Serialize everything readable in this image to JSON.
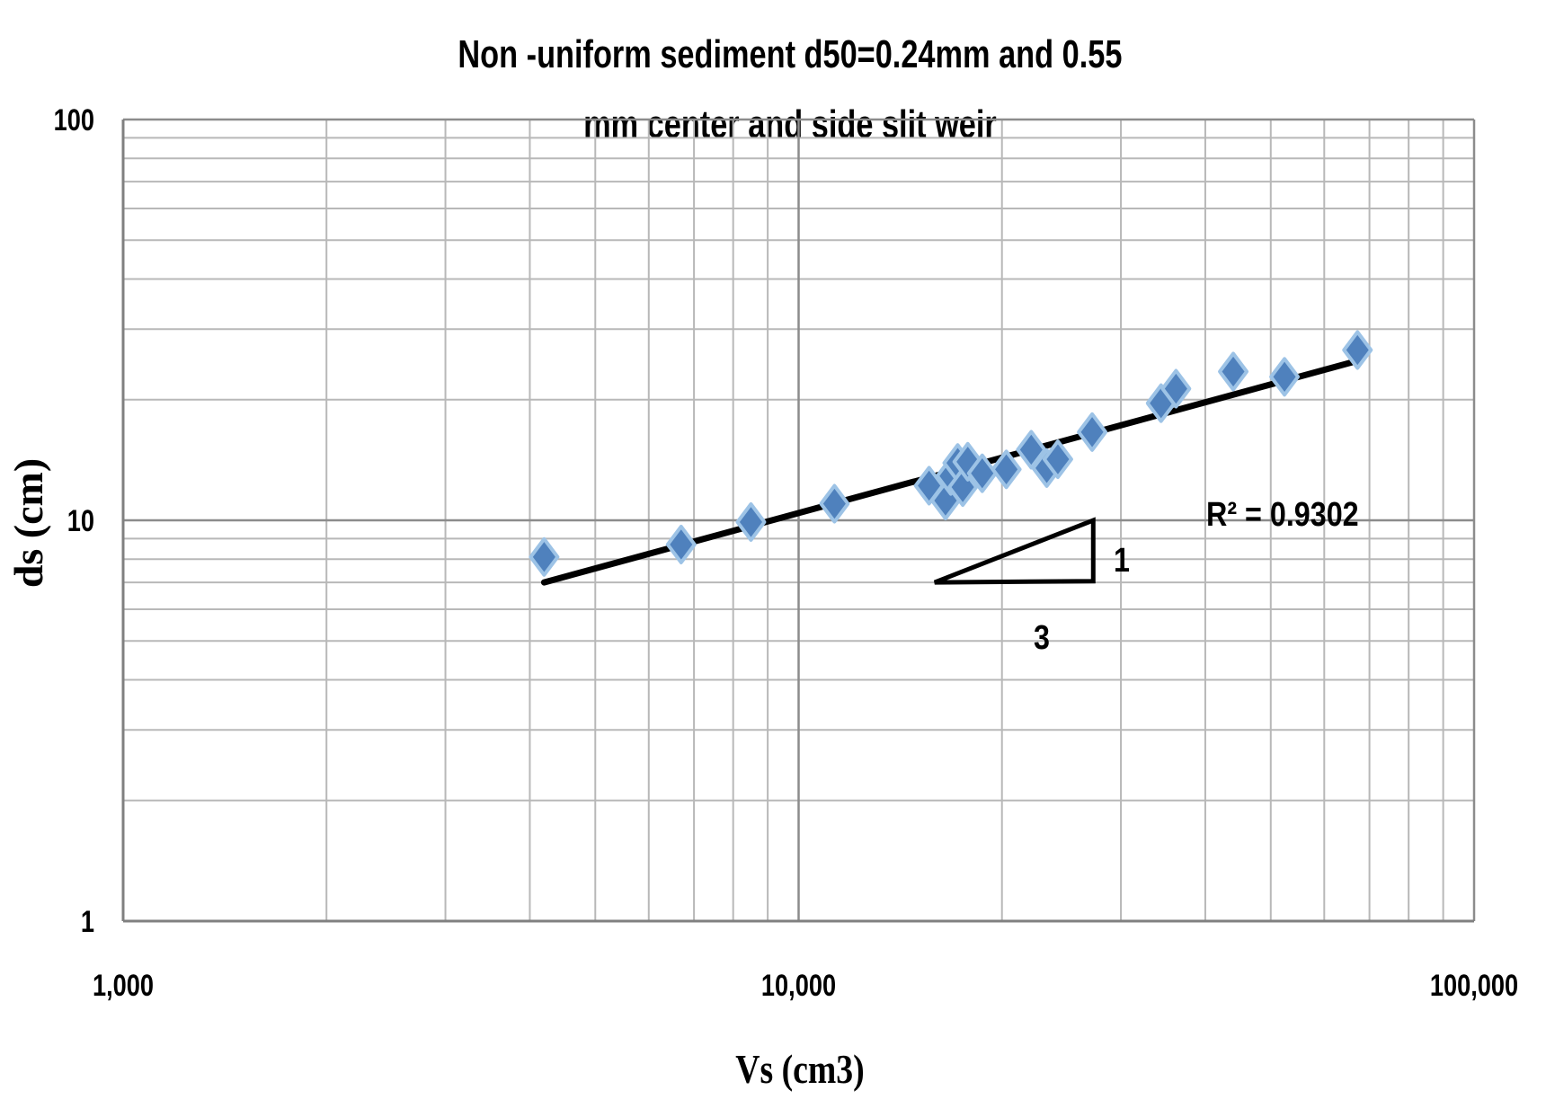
{
  "chart_data": {
    "type": "scatter",
    "title": "Non -uniform sediment  d50=0.24mm and 0.55 mm center and side slit weir",
    "title_lines": [
      "Non -uniform sediment  d50=0.24mm and 0.55",
      "mm center and side slit weir"
    ],
    "xlabel": "Vs (cm3)",
    "ylabel": "ds (cm)",
    "x_scale": "log",
    "y_scale": "log",
    "xlim": [
      1000,
      100000
    ],
    "ylim": [
      1,
      100
    ],
    "x_tick_labels": [
      "1,000",
      "10,000",
      "100,000"
    ],
    "x_ticks": [
      1000,
      10000,
      100000
    ],
    "y_tick_labels": [
      "1",
      "10",
      "100"
    ],
    "y_ticks": [
      1,
      10,
      100
    ],
    "grid": true,
    "legend": "none",
    "marker": "diamond",
    "marker_color": "#4f81bd",
    "marker_edge_color": "#9dc3e6",
    "series": [
      {
        "x": [
          4200,
          6700,
          8500,
          11300,
          15600,
          16500,
          16800,
          17200,
          17500,
          17800,
          18700,
          20300,
          22100,
          23300,
          24200,
          27200,
          34400,
          36200,
          44000,
          52400,
          67200
        ],
        "y": [
          8.1,
          8.7,
          9.9,
          11.0,
          12.2,
          11.2,
          12.9,
          13.9,
          12.1,
          14.0,
          13.1,
          13.4,
          15.0,
          13.5,
          14.2,
          16.6,
          19.6,
          21.3,
          23.5,
          22.8,
          26.6
        ]
      }
    ],
    "trendline": {
      "type": "power",
      "x": [
        4200,
        67200
      ],
      "y": [
        7.0,
        25.0
      ],
      "color": "#000000",
      "r2_label": "R² = 0.9302"
    },
    "slope_triangle": {
      "vertices": [
        [
          15900,
          7.0
        ],
        [
          27300,
          7.05
        ],
        [
          27300,
          10.0
        ]
      ],
      "rise_label": "1",
      "run_label": "3"
    }
  }
}
